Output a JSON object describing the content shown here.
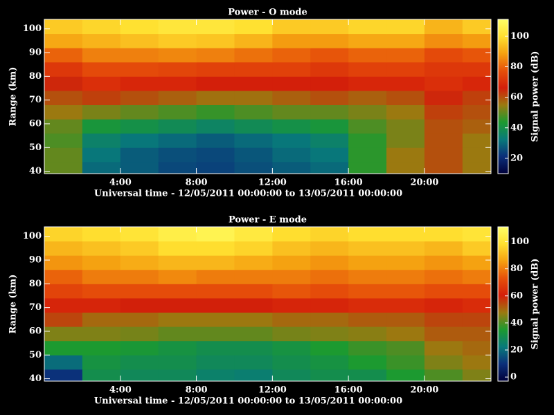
{
  "chart_data": [
    {
      "type": "heatmap",
      "title": "Power - O mode",
      "xlabel": "Universal time - 12/05/2011 00:00:00 to 13/05/2011 00:00:00",
      "ylabel": "Range (km)",
      "colorbar_label": "Signal power (dB)",
      "x_bins": [
        0,
        2,
        4,
        6,
        8,
        10,
        12,
        14,
        16,
        18,
        20,
        22,
        23.5
      ],
      "y_bins": [
        39,
        44,
        50,
        56,
        62,
        68,
        74,
        80,
        86,
        92,
        98,
        104
      ],
      "values": [
        [
          50,
          30,
          28,
          25,
          24,
          26,
          28,
          30,
          45,
          55,
          60,
          55
        ],
        [
          50,
          32,
          28,
          26,
          25,
          27,
          30,
          32,
          45,
          55,
          60,
          55
        ],
        [
          48,
          35,
          32,
          30,
          28,
          30,
          32,
          35,
          45,
          52,
          60,
          55
        ],
        [
          50,
          42,
          40,
          38,
          36,
          38,
          40,
          42,
          48,
          52,
          60,
          58
        ],
        [
          55,
          52,
          50,
          48,
          46,
          48,
          50,
          50,
          52,
          55,
          62,
          60
        ],
        [
          60,
          62,
          60,
          58,
          56,
          56,
          58,
          60,
          58,
          60,
          65,
          62
        ],
        [
          65,
          70,
          68,
          68,
          66,
          66,
          66,
          66,
          68,
          68,
          70,
          68
        ],
        [
          72,
          76,
          76,
          75,
          74,
          74,
          74,
          72,
          74,
          74,
          72,
          72
        ],
        [
          80,
          84,
          84,
          85,
          84,
          82,
          80,
          78,
          80,
          80,
          76,
          78
        ],
        [
          90,
          92,
          94,
          96,
          95,
          92,
          88,
          88,
          90,
          90,
          86,
          88
        ],
        [
          96,
          98,
          100,
          102,
          102,
          100,
          96,
          96,
          98,
          98,
          92,
          96
        ]
      ],
      "xlim": [
        0,
        23.5
      ],
      "xticks": [
        {
          "value": 4,
          "label": "4:00"
        },
        {
          "value": 8,
          "label": "8:00"
        },
        {
          "value": 12,
          "label": "12:00"
        },
        {
          "value": 16,
          "label": "16:00"
        },
        {
          "value": 20,
          "label": "20:00"
        }
      ],
      "ylim": [
        39,
        104
      ],
      "yticks": [
        40,
        50,
        60,
        70,
        80,
        90,
        100
      ],
      "clim": [
        10,
        111
      ],
      "cticks": [
        20,
        40,
        60,
        80,
        100
      ],
      "colormap": [
        "#00003a",
        "#0b2f7a",
        "#087a7a",
        "#1c9a30",
        "#9a7a10",
        "#d41e0a",
        "#e6500a",
        "#f5a010",
        "#ffe030",
        "#ffff66"
      ]
    },
    {
      "type": "heatmap",
      "title": "Power - E mode",
      "xlabel": "Universal time - 12/05/2011 00:00:00 to 13/05/2011 00:00:00",
      "ylabel": "Range (km)",
      "colorbar_label": "Signal power (dB)",
      "x_bins": [
        0,
        2,
        4,
        6,
        8,
        10,
        12,
        14,
        16,
        18,
        20,
        22,
        23.5
      ],
      "y_bins": [
        39,
        44,
        50,
        56,
        62,
        68,
        74,
        80,
        86,
        92,
        98,
        104
      ],
      "values": [
        [
          10,
          30,
          28,
          28,
          25,
          24,
          28,
          30,
          30,
          35,
          40,
          45
        ],
        [
          20,
          32,
          30,
          30,
          28,
          28,
          30,
          32,
          35,
          38,
          45,
          48
        ],
        [
          35,
          35,
          34,
          32,
          30,
          30,
          32,
          35,
          38,
          40,
          48,
          50
        ],
        [
          45,
          45,
          44,
          42,
          42,
          42,
          44,
          45,
          46,
          48,
          52,
          52
        ],
        [
          55,
          50,
          50,
          48,
          48,
          48,
          50,
          50,
          52,
          52,
          55,
          55
        ],
        [
          62,
          62,
          60,
          60,
          60,
          60,
          62,
          62,
          64,
          64,
          62,
          64
        ],
        [
          70,
          72,
          72,
          72,
          72,
          72,
          74,
          72,
          74,
          74,
          72,
          72
        ],
        [
          76,
          80,
          80,
          82,
          80,
          80,
          80,
          78,
          80,
          80,
          78,
          80
        ],
        [
          84,
          86,
          88,
          90,
          90,
          88,
          86,
          84,
          86,
          86,
          84,
          86
        ],
        [
          90,
          92,
          94,
          98,
          98,
          96,
          92,
          90,
          92,
          92,
          90,
          94
        ],
        [
          96,
          98,
          100,
          104,
          106,
          102,
          98,
          96,
          98,
          98,
          98,
          100
        ]
      ],
      "xlim": [
        0,
        23.5
      ],
      "xticks": [
        {
          "value": 4,
          "label": "4:00"
        },
        {
          "value": 8,
          "label": "8:00"
        },
        {
          "value": 12,
          "label": "12:00"
        },
        {
          "value": 16,
          "label": "16:00"
        },
        {
          "value": 20,
          "label": "20:00"
        }
      ],
      "ylim": [
        39,
        104
      ],
      "yticks": [
        40,
        50,
        60,
        70,
        80,
        90,
        100
      ],
      "clim": [
        -3,
        111
      ],
      "cticks": [
        0,
        20,
        40,
        60,
        80,
        100
      ],
      "colormap": [
        "#00003a",
        "#0b2f7a",
        "#087a7a",
        "#1c9a30",
        "#9a7a10",
        "#d41e0a",
        "#e6500a",
        "#f5a010",
        "#ffe030",
        "#ffff66"
      ]
    }
  ]
}
